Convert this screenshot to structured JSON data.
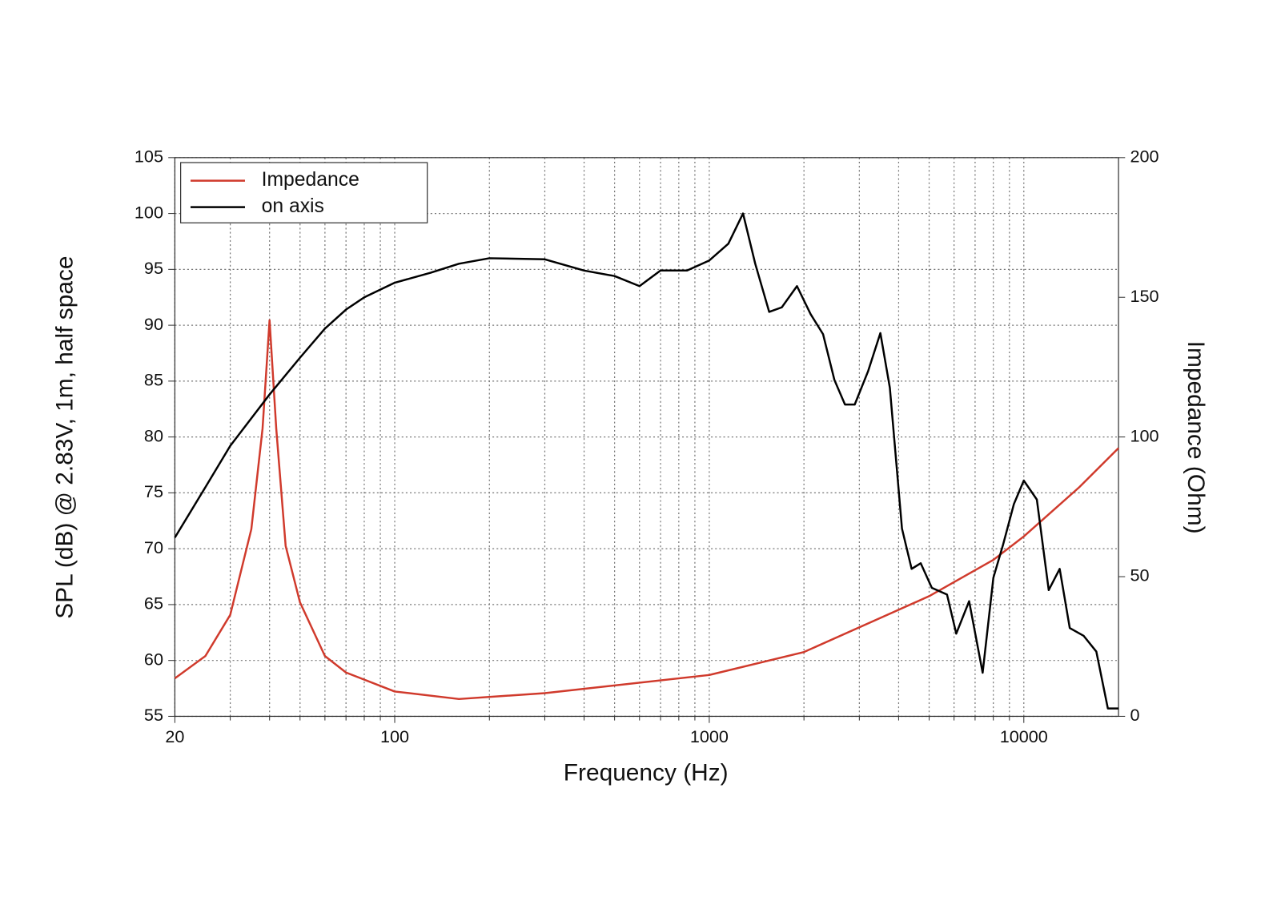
{
  "chart_data": {
    "type": "line",
    "xlabel": "Frequency (Hz)",
    "ylabel": "SPL (dB) @ 2.83V, 1m, half space",
    "y2label": "Impedance (Ohm)",
    "xscale": "log",
    "xlim": [
      20,
      20000
    ],
    "xticks": [
      20,
      100,
      1000,
      10000
    ],
    "xminorticks": [
      30,
      40,
      50,
      60,
      70,
      80,
      90,
      200,
      300,
      400,
      500,
      600,
      700,
      800,
      900,
      2000,
      3000,
      4000,
      5000,
      6000,
      7000,
      8000,
      9000
    ],
    "ylim": [
      55,
      105
    ],
    "yticks": [
      55,
      60,
      65,
      70,
      75,
      80,
      85,
      90,
      95,
      100,
      105
    ],
    "y2lim": [
      0,
      200
    ],
    "y2ticks": [
      0,
      50,
      100,
      150,
      200
    ],
    "grid": true,
    "legend": "upper left",
    "series": [
      {
        "name": "Impedance",
        "color": "#d03a2c",
        "axis": "y2",
        "x": [
          20,
          25,
          30,
          35,
          38,
          40,
          42,
          45,
          50,
          60,
          70,
          100,
          160,
          300,
          1000,
          2000,
          5000,
          8000,
          10000,
          15000,
          20000
        ],
        "values": [
          13.6,
          21.6,
          36.3,
          67,
          103,
          141.8,
          103,
          61,
          40.8,
          21.6,
          15.7,
          8.9,
          6.2,
          8.3,
          14.8,
          23,
          43,
          56,
          64.4,
          82,
          96
        ]
      },
      {
        "name": "on axis",
        "color": "#000000",
        "x": [
          20,
          25,
          30,
          40,
          50,
          60,
          70,
          80,
          100,
          130,
          160,
          200,
          300,
          400,
          500,
          600,
          700,
          850,
          1000,
          1150,
          1280,
          1400,
          1550,
          1700,
          1900,
          2100,
          2300,
          2500,
          2700,
          2900,
          3200,
          3500,
          3750,
          4100,
          4400,
          4700,
          5100,
          5700,
          6100,
          6700,
          7400,
          8000,
          8600,
          9300,
          10000,
          11000,
          12000,
          13000,
          14000,
          15500,
          17000,
          18500,
          20000
        ],
        "values": [
          71.0,
          75.5,
          79.2,
          83.8,
          87.1,
          89.7,
          91.4,
          92.5,
          93.8,
          94.7,
          95.5,
          96.0,
          95.9,
          94.9,
          94.4,
          93.5,
          94.9,
          94.9,
          95.8,
          97.3,
          100.0,
          95.5,
          91.2,
          91.6,
          93.5,
          91.0,
          89.2,
          85.1,
          82.9,
          82.9,
          85.9,
          89.3,
          84.4,
          71.8,
          68.2,
          68.7,
          66.5,
          65.9,
          62.4,
          65.3,
          58.9,
          67.4,
          70.4,
          74.0,
          76.1,
          74.4,
          66.3,
          68.2,
          62.9,
          62.2,
          60.8,
          55.7,
          55.7
        ]
      }
    ]
  }
}
